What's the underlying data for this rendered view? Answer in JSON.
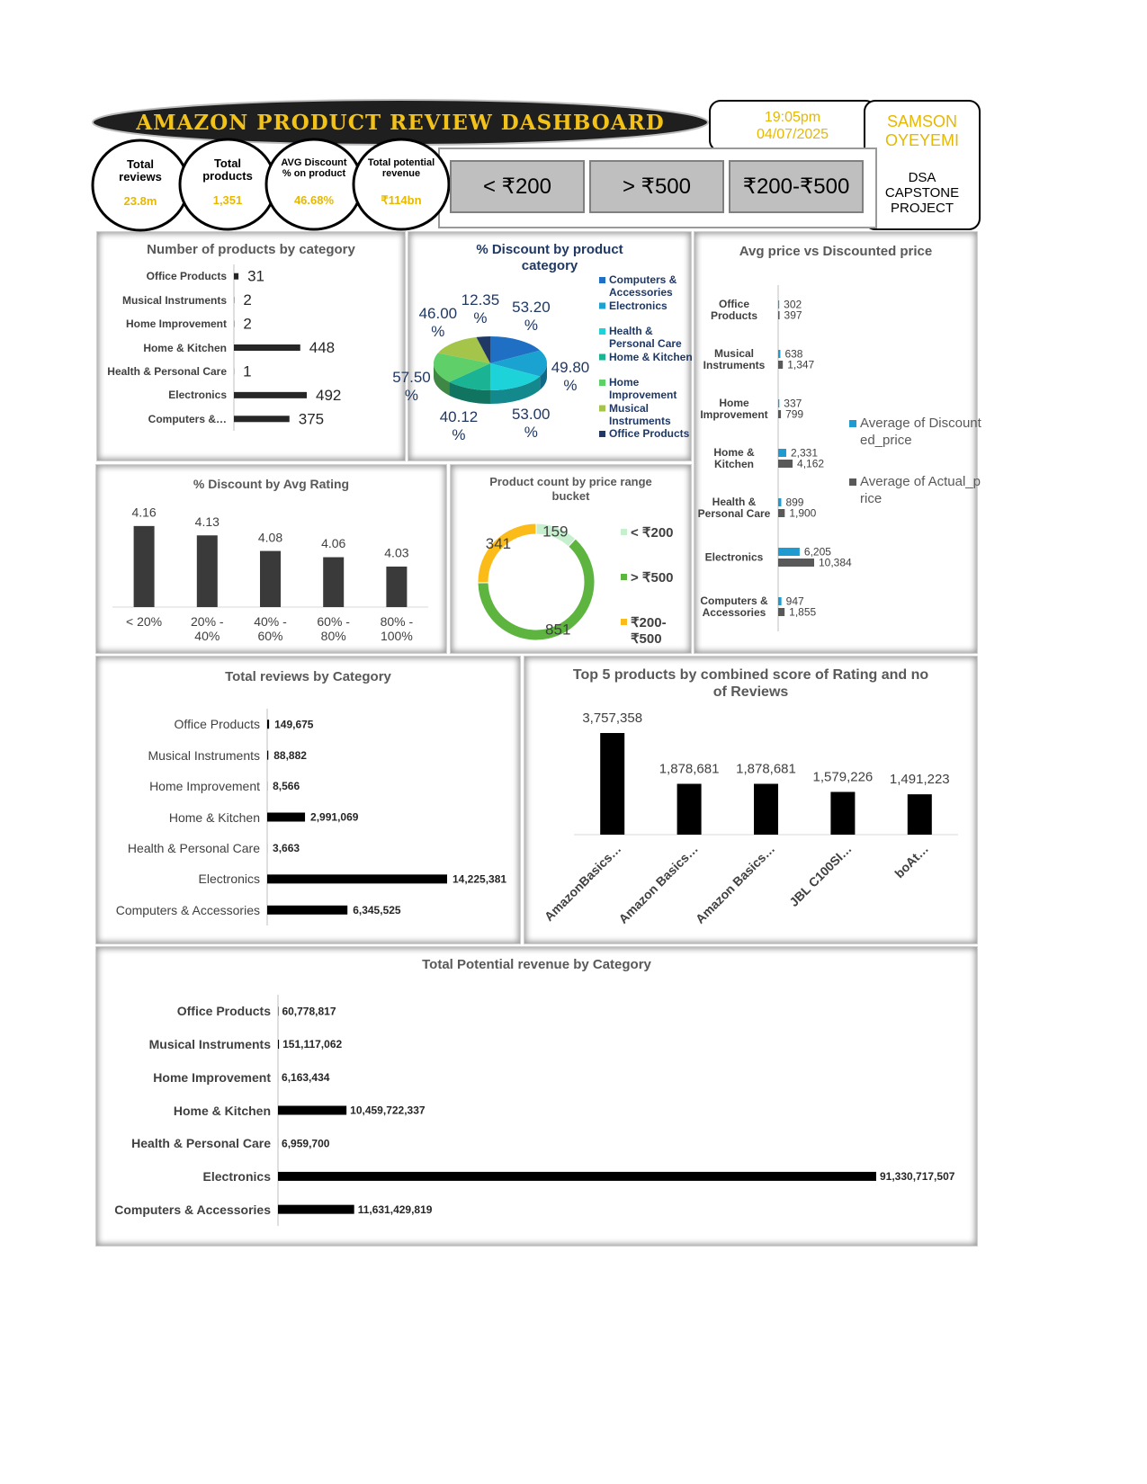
{
  "header": {
    "title": "AMAZON PRODUCT REVIEW DASHBOARD",
    "time": "19:05pm",
    "date": "04/07/2025",
    "author": "SAMSON OYEYEMI",
    "project": "DSA CAPSTONE PROJECT"
  },
  "kpis": [
    {
      "label": "Total reviews",
      "value": "23.8m"
    },
    {
      "label": "Total products",
      "value": "1,351"
    },
    {
      "label": "AVG Discount % on product",
      "value": "46.68%"
    },
    {
      "label": "Total potential revenue",
      "value": "₹114bn"
    }
  ],
  "slicer": {
    "items": [
      "< ₹200",
      "> ₹500",
      "₹200-₹500"
    ]
  },
  "chart_data": [
    {
      "type": "barh",
      "title": "Number of products by category",
      "categories": [
        "Office Products",
        "Musical Instruments",
        "Home Improvement",
        "Home & Kitchen",
        "Health & Personal Care",
        "Electronics",
        "Computers &…"
      ],
      "values": [
        31,
        2,
        2,
        448,
        1,
        492,
        375
      ],
      "color": "#262626"
    },
    {
      "type": "pie",
      "title": "% Discount by product category",
      "categories": [
        "Computers & Accessories",
        "Electronics",
        "Health & Personal Care",
        "Home & Kitchen",
        "Home Improvement",
        "Musical Instruments",
        "Office Products"
      ],
      "values": [
        53.2,
        49.8,
        53,
        40.12,
        57.5,
        46,
        12.35
      ],
      "value_labels": [
        "53.20 %",
        "49.80 %",
        "53.00 %",
        "40.12 %",
        "57.50 %",
        "46.00 %",
        "12.35 %"
      ],
      "colors": [
        "#1f6fc5",
        "#1aa3d0",
        "#1dd3d9",
        "#1ab394",
        "#5fcf6a",
        "#a4c44a",
        "#1f3864"
      ],
      "legend": "right"
    },
    {
      "type": "bar",
      "title": "% Discount by Avg Rating",
      "categories": [
        "< 20%",
        "20% - 40%",
        "40% - 60%",
        "60% - 80%",
        "80% - 100%"
      ],
      "values": [
        4.16,
        4.13,
        4.08,
        4.06,
        4.03
      ],
      "color": "#3a3a3a",
      "ylim": [
        3.9,
        4.2
      ]
    },
    {
      "type": "donut",
      "title": "Product count by price range bucket",
      "categories": [
        "< ₹200",
        "> ₹500",
        "₹200-₹500"
      ],
      "values": [
        159,
        851,
        341
      ],
      "colors": [
        "#c6efce",
        "#5db53f",
        "#fbbc1a"
      ],
      "legend": "right"
    },
    {
      "type": "barh",
      "title": "Avg price vs Discounted price",
      "categories": [
        "Office Products",
        "Musical Instruments",
        "Home Improvement",
        "Home & Kitchen",
        "Health & Personal Care",
        "Electronics",
        "Computers & Accessories"
      ],
      "series": [
        {
          "name": "Average of Discounted_price",
          "color": "#1f9bd1",
          "values": [
            302,
            638,
            337,
            2331,
            899,
            6205,
            947
          ],
          "value_labels": [
            "302",
            "638",
            "337",
            "2,331",
            "899",
            "6,205",
            "947"
          ]
        },
        {
          "name": "Average of Actual_price",
          "color": "#595959",
          "values": [
            397,
            1347,
            799,
            4162,
            1900,
            10384,
            1855
          ],
          "value_labels": [
            "397",
            "1,347",
            "799",
            "4,162",
            "1,900",
            "10,384",
            "1,855"
          ]
        }
      ],
      "legend": "right"
    },
    {
      "type": "barh",
      "title": "Total reviews by Category",
      "categories": [
        "Office Products",
        "Musical Instruments",
        "Home Improvement",
        "Home & Kitchen",
        "Health & Personal Care",
        "Electronics",
        "Computers & Accessories"
      ],
      "values": [
        149675,
        88882,
        8566,
        2991069,
        3663,
        14225381,
        6345525
      ],
      "value_labels": [
        "149,675",
        "88,882",
        "8,566",
        "2,991,069",
        "3,663",
        "14,225,381",
        "6,345,525"
      ],
      "color": "#000000"
    },
    {
      "type": "bar",
      "title": "Top 5 products by combined score of Rating and no of Reviews",
      "categories": [
        "AmazonBasics…",
        "Amazon Basics…",
        "Amazon Basics…",
        "JBL C100SI…",
        "boAt…"
      ],
      "values": [
        3757358,
        1878681,
        1878681,
        1579226,
        1491223
      ],
      "value_labels": [
        "3,757,358",
        "1,878,681",
        "1,878,681",
        "1,579,226",
        "1,491,223"
      ],
      "color": "#000000"
    },
    {
      "type": "barh",
      "title": "Total Potential revenue by Category",
      "categories": [
        "Office Products",
        "Musical Instruments",
        "Home Improvement",
        "Home & Kitchen",
        "Health & Personal Care",
        "Electronics",
        "Computers & Accessories"
      ],
      "values": [
        60778817,
        151117062,
        6163434,
        10459722337,
        6959700,
        91330717507,
        11631429819
      ],
      "value_labels": [
        "60,778,817",
        "151,117,062",
        "6,163,434",
        "10,459,722,337",
        "6,959,700",
        "91,330,717,507",
        "11,631,429,819"
      ],
      "color": "#000000"
    }
  ]
}
